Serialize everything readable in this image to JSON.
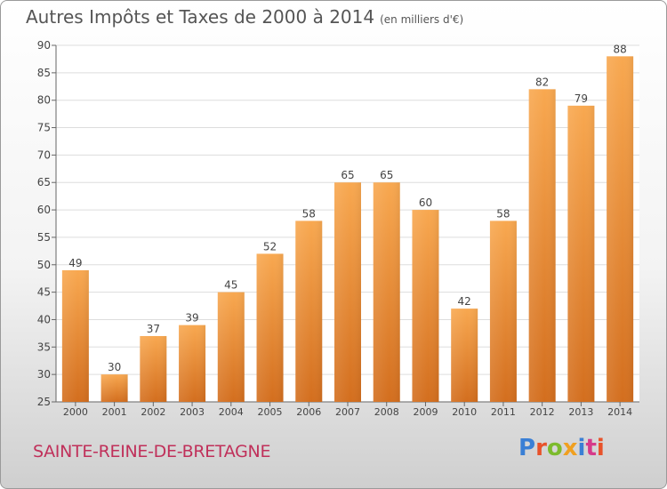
{
  "header": {
    "title": "Autres Impôts et Taxes de 2000 à 2014",
    "unit": "(en milliers d'€)"
  },
  "footer": {
    "place": "SAINTE-REINE-DE-BRETAGNE",
    "logo": "Proxiti",
    "logo_colors": [
      "#3a7fd5",
      "#e8522a",
      "#7cbb2d",
      "#f0a020",
      "#3a7fd5",
      "#d63a8a",
      "#e8522a"
    ]
  },
  "chart_data": {
    "type": "bar",
    "title": "Autres Impôts et Taxes de 2000 à 2014",
    "categories": [
      "2000",
      "2001",
      "2002",
      "2003",
      "2004",
      "2005",
      "2006",
      "2007",
      "2008",
      "2009",
      "2010",
      "2011",
      "2012",
      "2013",
      "2014"
    ],
    "values": [
      49,
      30,
      37,
      39,
      45,
      52,
      58,
      65,
      65,
      60,
      42,
      58,
      82,
      79,
      88
    ],
    "ylim": [
      25,
      90
    ],
    "yticks": [
      25,
      30,
      35,
      40,
      45,
      50,
      55,
      60,
      65,
      70,
      75,
      80,
      85,
      90
    ],
    "grid": true,
    "bar_color": "#f0902e"
  }
}
